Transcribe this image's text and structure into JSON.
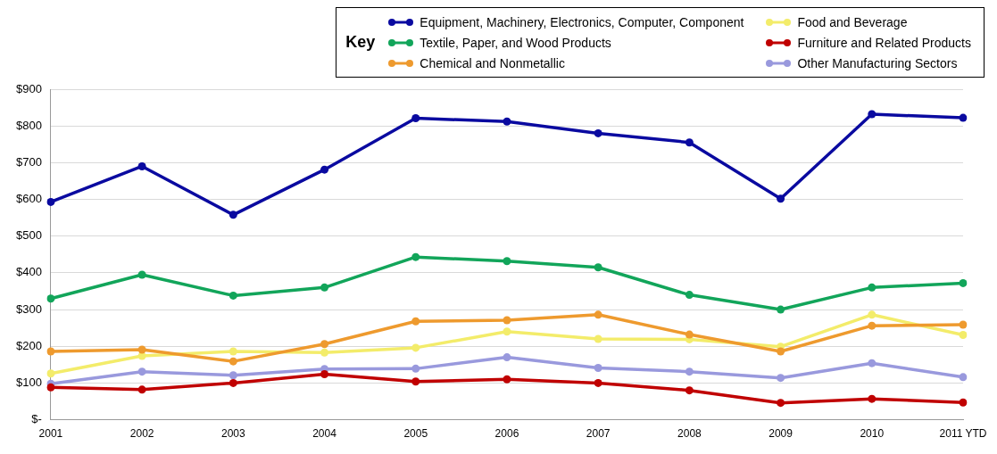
{
  "chart_data": {
    "type": "line",
    "legend_title": "Key",
    "legend": "top right",
    "grid": "y",
    "marker": "circle",
    "line_style": "solid",
    "categories": [
      "2001",
      "2002",
      "2003",
      "2004",
      "2005",
      "2006",
      "2007",
      "2008",
      "2009",
      "2010",
      "2011 YTD"
    ],
    "ylim": [
      0,
      900
    ],
    "yticks": [
      {
        "value": 0,
        "label": "$-"
      },
      {
        "value": 100,
        "label": "$100"
      },
      {
        "value": 200,
        "label": "$200"
      },
      {
        "value": 300,
        "label": "$300"
      },
      {
        "value": 400,
        "label": "$400"
      },
      {
        "value": 500,
        "label": "$500"
      },
      {
        "value": 600,
        "label": "$600"
      },
      {
        "value": 700,
        "label": "$700"
      },
      {
        "value": 800,
        "label": "$800"
      },
      {
        "value": 900,
        "label": "$900"
      }
    ],
    "series": [
      {
        "name": "Equipment, Machinery, Electronics, Computer, Component",
        "color": "#0a0aa0",
        "values": [
          593,
          690,
          558,
          681,
          821,
          812,
          780,
          755,
          602,
          832,
          822
        ]
      },
      {
        "name": "Textile, Paper, and Wood Products",
        "color": "#12a55a",
        "values": [
          330,
          395,
          338,
          360,
          443,
          432,
          415,
          340,
          300,
          360,
          372
        ]
      },
      {
        "name": "Chemical and Nonmetallic",
        "color": "#ee9a2e",
        "values": [
          186,
          191,
          159,
          206,
          268,
          271,
          286,
          232,
          186,
          256,
          259
        ]
      },
      {
        "name": "Food and Beverage",
        "color": "#f3ec6a",
        "values": [
          126,
          174,
          186,
          183,
          196,
          240,
          220,
          219,
          199,
          286,
          231
        ]
      },
      {
        "name": "Furniture and Related Products",
        "color": "#c00000",
        "values": [
          88,
          82,
          100,
          124,
          104,
          110,
          100,
          80,
          46,
          57,
          47
        ]
      },
      {
        "name": "Other Manufacturing  Sectors",
        "color": "#9999dd",
        "values": [
          98,
          131,
          121,
          138,
          139,
          170,
          141,
          131,
          114,
          154,
          116
        ]
      }
    ]
  }
}
